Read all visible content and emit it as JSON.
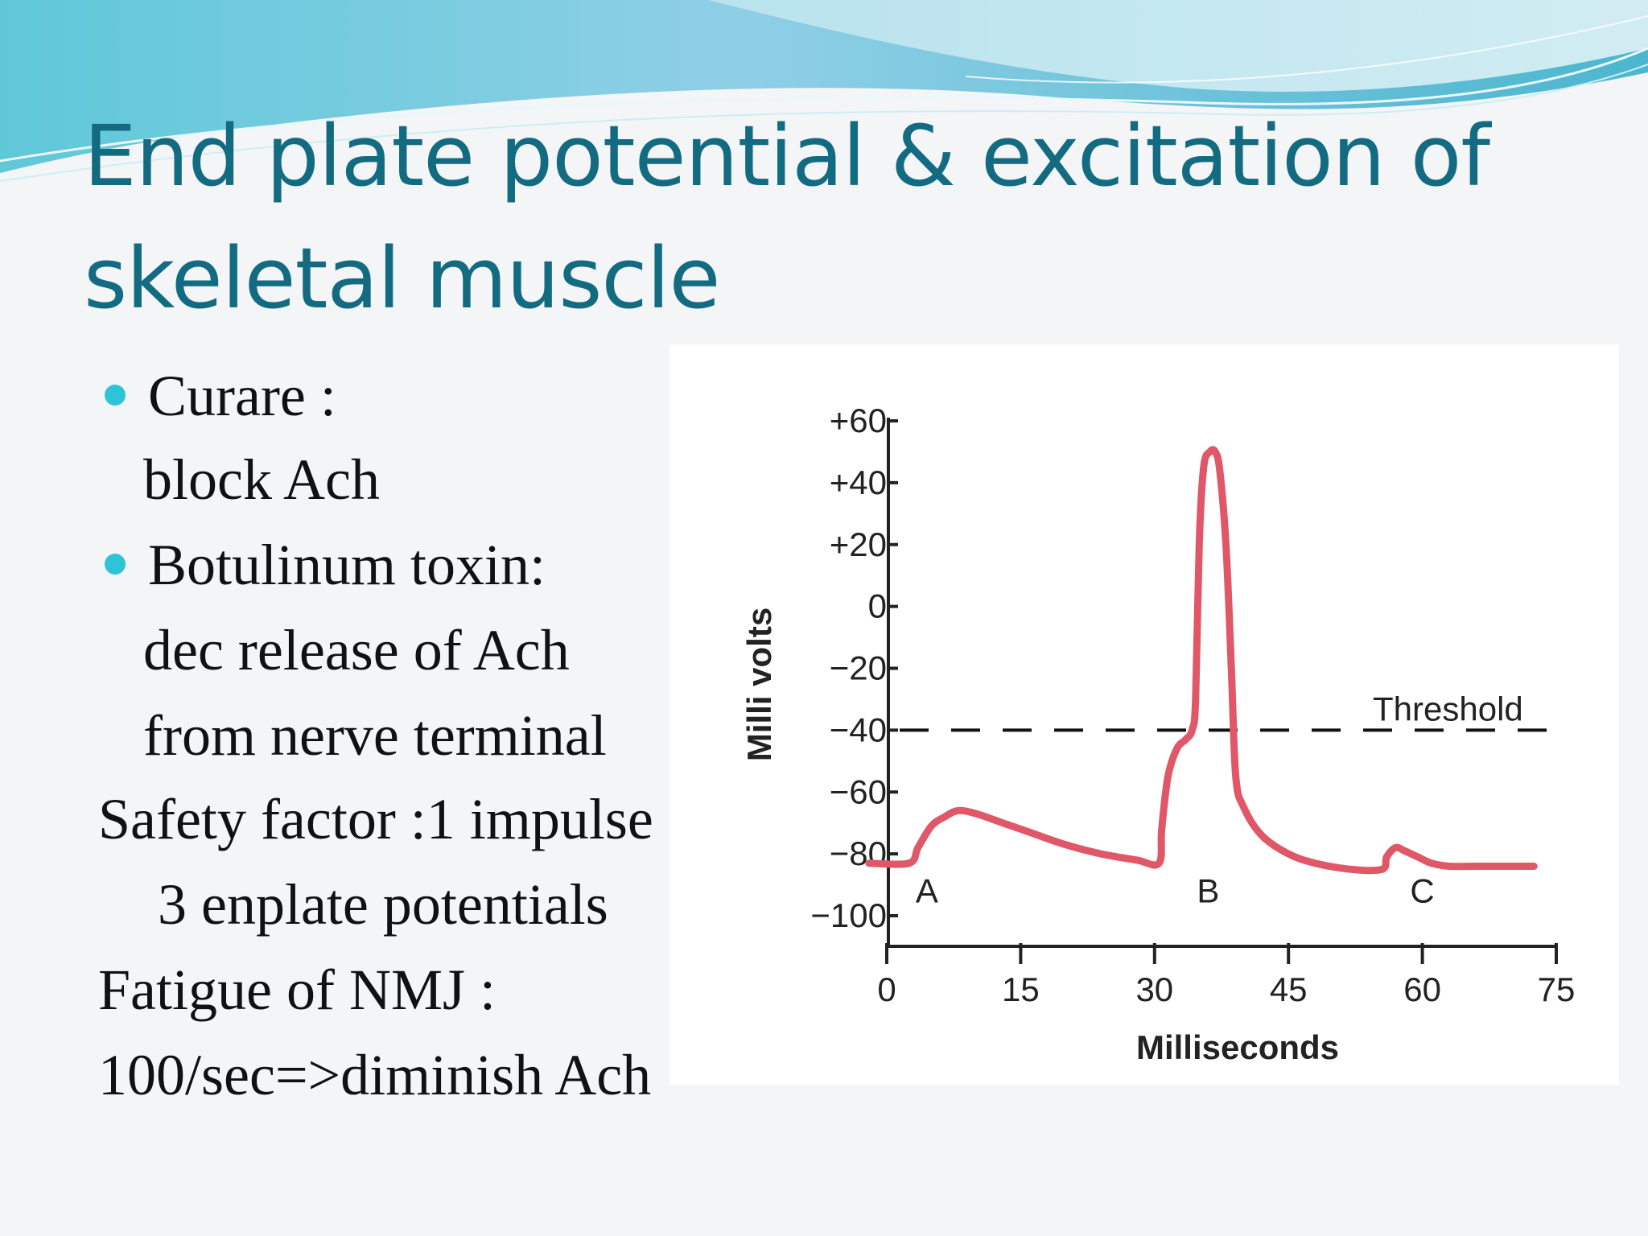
{
  "slide": {
    "title_line1": "End plate potential & excitation of",
    "title_line2": "skeletal muscle",
    "body_lines": [
      "Curare  :",
      "block Ach",
      "Botulinum toxin:",
      "dec release of Ach",
      "from nerve terminal",
      "Safety factor :1 impulse",
      "3 enplate potentials",
      "Fatigue of NMJ :",
      "100/sec=>diminish Ach"
    ]
  },
  "colors": {
    "title": "#136b82",
    "bullet": "#2ec4d8",
    "trace": "#e05868",
    "axis": "#222222"
  },
  "chart_data": {
    "type": "line",
    "xlabel": "Milliseconds",
    "ylabel": "Milli volts",
    "xlim": [
      0,
      75
    ],
    "ylim": [
      -100,
      60
    ],
    "xticks": [
      0,
      15,
      30,
      45,
      60,
      75
    ],
    "yticks": [
      60,
      40,
      20,
      0,
      -20,
      -40,
      -60,
      -80,
      -100
    ],
    "ytick_labels": [
      "+60",
      "+40",
      "+20",
      "0",
      "−20",
      "−40",
      "−60",
      "−80",
      "−100"
    ],
    "series": [
      {
        "x": [
          -2,
          2.5,
          3.5,
          5,
          6.5,
          8,
          10,
          13,
          16,
          20,
          24,
          28,
          30.5,
          30.8,
          31.5,
          32.5,
          33.5,
          34.2,
          34.6,
          35,
          35.5,
          36.2,
          36.8,
          37.3,
          38,
          38.6,
          39.1,
          40,
          42,
          45,
          48,
          52,
          55.5,
          56,
          57,
          58,
          59.5,
          61,
          63,
          66,
          70,
          72.5
        ],
        "y": [
          -83,
          -83,
          -78,
          -71,
          -68,
          -66,
          -67,
          -70,
          -73,
          -77,
          -80,
          -82,
          -83,
          -72,
          -55,
          -46,
          -43,
          -40,
          -30,
          20,
          45,
          50,
          50,
          44,
          20,
          -20,
          -55,
          -65,
          -74,
          -80,
          -83,
          -85,
          -85,
          -81,
          -78,
          -79,
          -81,
          -83,
          -84,
          -84,
          -84,
          -84
        ]
      }
    ],
    "threshold": {
      "label": "Threshold",
      "y": -40
    },
    "annotations": [
      {
        "label": "A",
        "x": 4.5,
        "y": -92
      },
      {
        "label": "B",
        "x": 36,
        "y": -92
      },
      {
        "label": "C",
        "x": 60,
        "y": -92
      }
    ]
  }
}
